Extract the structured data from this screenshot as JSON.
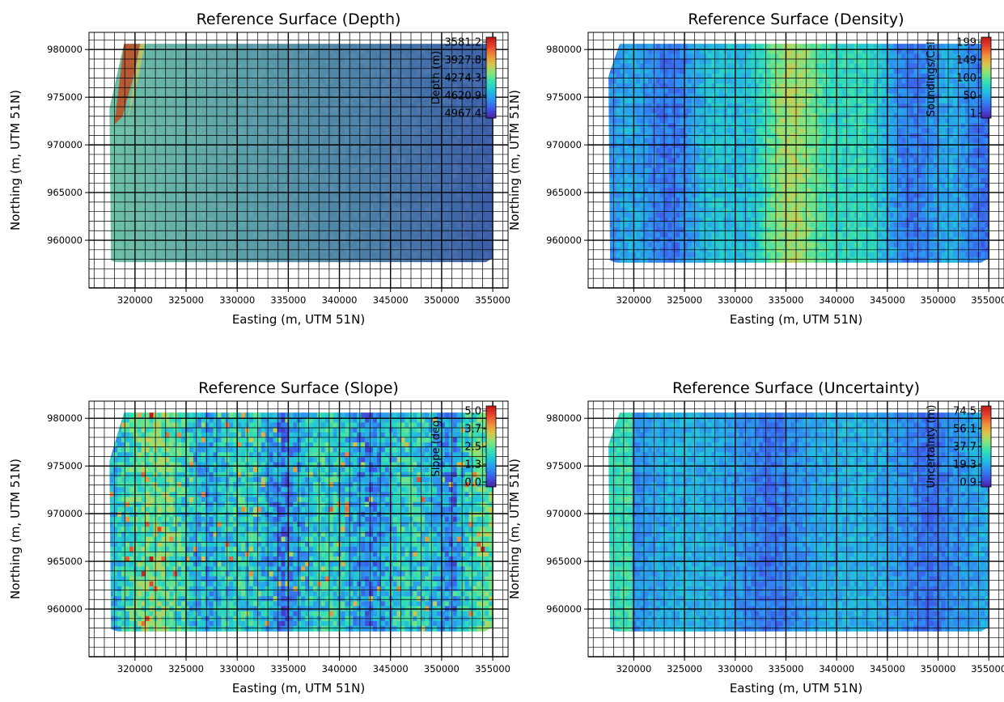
{
  "colors": {
    "jet": [
      "#4a1f9e",
      "#3f55e6",
      "#2f8ff2",
      "#22c1dc",
      "#35e0b2",
      "#8ae37a",
      "#d8c64a",
      "#f08c3c",
      "#e6412c",
      "#c01818"
    ],
    "depth_low": "#3a5ea8",
    "depth_high": "#6cc0a6",
    "ridge": "#c24a20",
    "grid": "#000000"
  },
  "chart_data": [
    {
      "type": "heatmap",
      "title": "Reference Surface (Depth)",
      "xlabel": "Easting (m, UTM 51N)",
      "ylabel": "Northing (m, UTM 51N)",
      "xlim": [
        315500,
        356500
      ],
      "ylim": [
        955000,
        981800
      ],
      "xticks": [
        320000,
        325000,
        330000,
        335000,
        340000,
        345000,
        350000,
        355000
      ],
      "yticks": [
        960000,
        965000,
        970000,
        975000,
        980000
      ],
      "xtick_labels": [
        "320000",
        "325000",
        "330000",
        "335000",
        "340000",
        "345000",
        "350000",
        "355000"
      ],
      "ytick_labels": [
        "960000",
        "965000",
        "970000",
        "975000",
        "980000"
      ],
      "colorbar": {
        "label": "Depth (m)",
        "ticks": [
          "3581.2",
          "3927.8",
          "4274.3",
          "4620.9",
          "4967.4"
        ]
      },
      "grid": true,
      "surface_extent": {
        "x": [
          317500,
          355000
        ],
        "y": [
          957700,
          980600
        ]
      },
      "pattern": "depth"
    },
    {
      "type": "heatmap",
      "title": "Reference Surface (Density)",
      "xlabel": "Easting (m, UTM 51N)",
      "ylabel": "Northing (m, UTM 51N)",
      "xlim": [
        315500,
        356500
      ],
      "ylim": [
        955000,
        981800
      ],
      "xticks": [
        320000,
        325000,
        330000,
        335000,
        340000,
        345000,
        350000,
        355000
      ],
      "yticks": [
        960000,
        965000,
        970000,
        975000,
        980000
      ],
      "xtick_labels": [
        "320000",
        "325000",
        "330000",
        "335000",
        "340000",
        "345000",
        "350000",
        "355000"
      ],
      "ytick_labels": [
        "960000",
        "965000",
        "970000",
        "975000",
        "980000"
      ],
      "colorbar": {
        "label": "Soundings/Cell",
        "ticks": [
          "199",
          "149",
          "100",
          "50",
          "1"
        ]
      },
      "grid": true,
      "surface_extent": {
        "x": [
          317500,
          355000
        ],
        "y": [
          957700,
          980600
        ]
      },
      "pattern": "density"
    },
    {
      "type": "heatmap",
      "title": "Reference Surface (Slope)",
      "xlabel": "Easting (m, UTM 51N)",
      "ylabel": "Northing (m, UTM 51N)",
      "xlim": [
        315500,
        356500
      ],
      "ylim": [
        955000,
        981800
      ],
      "xticks": [
        320000,
        325000,
        330000,
        335000,
        340000,
        345000,
        350000,
        355000
      ],
      "yticks": [
        960000,
        965000,
        970000,
        975000,
        980000
      ],
      "xtick_labels": [
        "320000",
        "325000",
        "330000",
        "335000",
        "340000",
        "345000",
        "350000",
        "355000"
      ],
      "ytick_labels": [
        "960000",
        "965000",
        "970000",
        "975000",
        "980000"
      ],
      "colorbar": {
        "label": "Slope (deg)",
        "ticks": [
          "5.0",
          "3.7",
          "2.5",
          "1.3",
          "0.0"
        ]
      },
      "grid": true,
      "surface_extent": {
        "x": [
          317500,
          355000
        ],
        "y": [
          957700,
          980600
        ]
      },
      "pattern": "slope"
    },
    {
      "type": "heatmap",
      "title": "Reference Surface (Uncertainty)",
      "xlabel": "Easting (m, UTM 51N)",
      "ylabel": "Northing (m, UTM 51N)",
      "xlim": [
        315500,
        356500
      ],
      "ylim": [
        955000,
        981800
      ],
      "xticks": [
        320000,
        325000,
        330000,
        335000,
        340000,
        345000,
        350000,
        355000
      ],
      "yticks": [
        960000,
        965000,
        970000,
        975000,
        980000
      ],
      "xtick_labels": [
        "320000",
        "325000",
        "330000",
        "335000",
        "340000",
        "345000",
        "350000",
        "355000"
      ],
      "ytick_labels": [
        "960000",
        "965000",
        "970000",
        "975000",
        "980000"
      ],
      "colorbar": {
        "label": "Uncertainty (m)",
        "ticks": [
          "74.5",
          "56.1",
          "37.7",
          "19.3",
          "0.9"
        ]
      },
      "grid": true,
      "surface_extent": {
        "x": [
          317500,
          355000
        ],
        "y": [
          957700,
          980600
        ]
      },
      "pattern": "uncertainty"
    }
  ]
}
